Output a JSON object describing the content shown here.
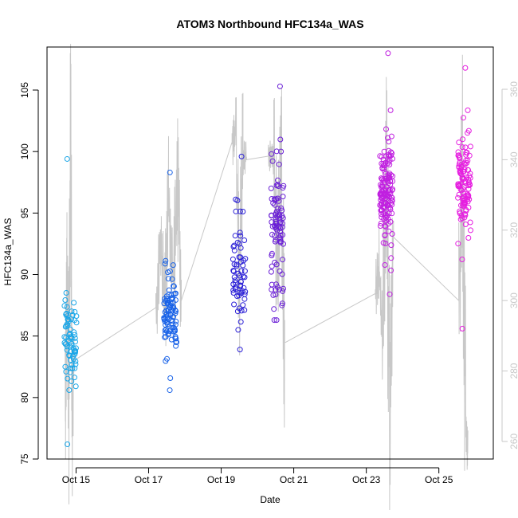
{
  "chart_data": {
    "type": "scatter",
    "title": "ATOM3 Northbound HFC134a_WAS",
    "xlabel": "Date",
    "ylabel": "HFC134a_WAS",
    "x_ticks": [
      {
        "label": "Oct 15",
        "day": 15
      },
      {
        "label": "Oct 17",
        "day": 17
      },
      {
        "label": "Oct 19",
        "day": 19
      },
      {
        "label": "Oct 21",
        "day": 21
      },
      {
        "label": "Oct 23",
        "day": 23
      },
      {
        "label": "Oct 25",
        "day": 25
      }
    ],
    "xlim_days": [
      14.2,
      26.5
    ],
    "ylim": [
      75,
      108.5
    ],
    "y_ticks": [
      75,
      80,
      85,
      90,
      95,
      100,
      105
    ],
    "y2_ticks": [
      260,
      280,
      300,
      320,
      340,
      360
    ],
    "y2lim": [
      255,
      372
    ],
    "colors": {
      "line": "#c8c8c8",
      "flights": [
        "#19a6e8",
        "#1a63e8",
        "#2a1fd6",
        "#6a1fd6",
        "#c020e0",
        "#e61ee0"
      ]
    },
    "flights": [
      {
        "day": 14.85,
        "min": 76.2,
        "max": 99.4,
        "center": 84.5,
        "spread": 1.7,
        "n": 72
      },
      {
        "day": 17.6,
        "min": 80.6,
        "max": 98.3,
        "center": 86.8,
        "spread": 1.5,
        "n": 95
      },
      {
        "day": 19.5,
        "min": 83.9,
        "max": 99.6,
        "center": 90.8,
        "spread": 2.6,
        "n": 62
      },
      {
        "day": 20.55,
        "min": 86.3,
        "max": 105.3,
        "center": 93.5,
        "spread": 2.8,
        "n": 88
      },
      {
        "day": 23.55,
        "min": 88.4,
        "max": 108.0,
        "center": 96.6,
        "spread": 2.2,
        "n": 150
      },
      {
        "day": 25.7,
        "min": 85.6,
        "max": 106.8,
        "center": 97.5,
        "spread": 2.2,
        "n": 110
      }
    ],
    "altitude_line": [
      [
        14.7,
        270
      ],
      [
        14.75,
        306
      ],
      [
        14.8,
        272
      ],
      [
        14.85,
        342
      ],
      [
        14.9,
        268
      ],
      [
        14.95,
        283
      ],
      [
        17.2,
        298
      ],
      [
        17.35,
        315
      ],
      [
        17.45,
        300
      ],
      [
        17.55,
        328
      ],
      [
        17.7,
        307
      ],
      [
        17.8,
        336
      ],
      [
        17.9,
        300
      ],
      [
        19.3,
        345
      ],
      [
        19.4,
        348
      ],
      [
        19.5,
        304
      ],
      [
        19.6,
        341
      ],
      [
        19.7,
        340
      ],
      [
        20.3,
        341
      ],
      [
        20.45,
        342
      ],
      [
        20.55,
        305
      ],
      [
        20.65,
        340
      ],
      [
        20.75,
        288
      ],
      [
        23.25,
        302
      ],
      [
        23.35,
        309
      ],
      [
        23.45,
        290
      ],
      [
        23.55,
        340
      ],
      [
        23.65,
        272
      ],
      [
        23.75,
        318
      ],
      [
        25.55,
        300
      ],
      [
        25.65,
        340
      ],
      [
        25.75,
        260
      ],
      [
        25.8,
        258
      ]
    ]
  }
}
